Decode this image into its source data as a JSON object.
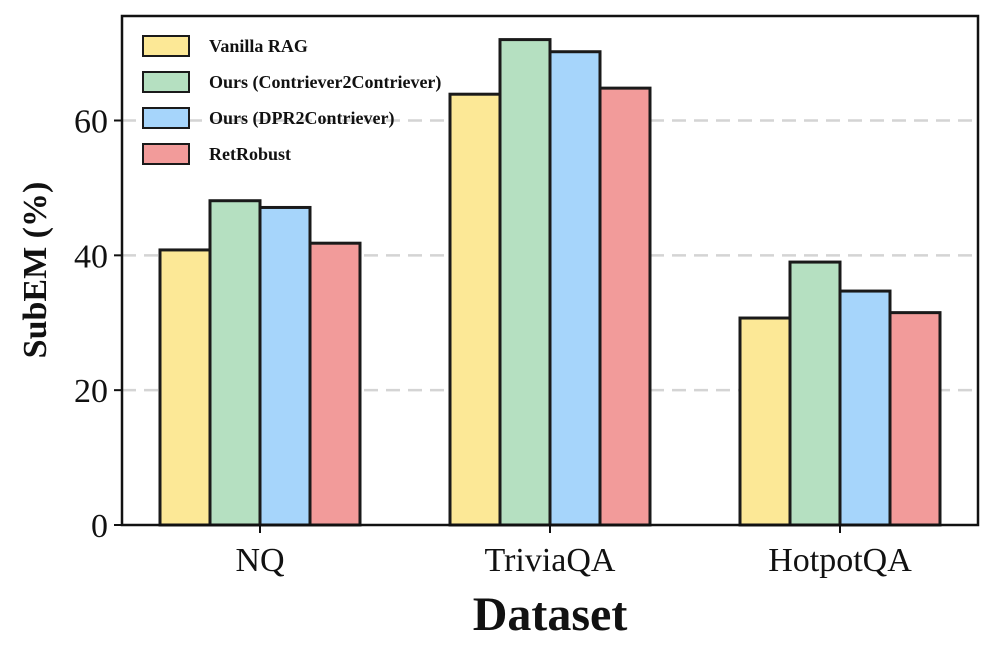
{
  "chart_data": {
    "type": "bar",
    "title": "",
    "xlabel": "Dataset",
    "ylabel": "SubEM (%)",
    "categories": [
      "NQ",
      "TriviaQA",
      "HotpotQA"
    ],
    "ylim": [
      0,
      75.5
    ],
    "yticks": [
      0,
      20,
      40,
      60
    ],
    "grid": "horizontal-dashed",
    "legend_position": "top-left",
    "series": [
      {
        "name": "Vanilla RAG",
        "color": "#fce896",
        "values": [
          40.8,
          63.9,
          30.7
        ]
      },
      {
        "name": "Ours (Contriever2Contriever)",
        "color": "#b5e0c1",
        "values": [
          48.1,
          72.0,
          39.0
        ]
      },
      {
        "name": "Ours (DPR2Contriever)",
        "color": "#a6d5fb",
        "values": [
          47.1,
          70.2,
          34.7
        ]
      },
      {
        "name": "RetRobust",
        "color": "#f29b9a",
        "values": [
          41.8,
          64.8,
          31.5
        ]
      }
    ]
  }
}
